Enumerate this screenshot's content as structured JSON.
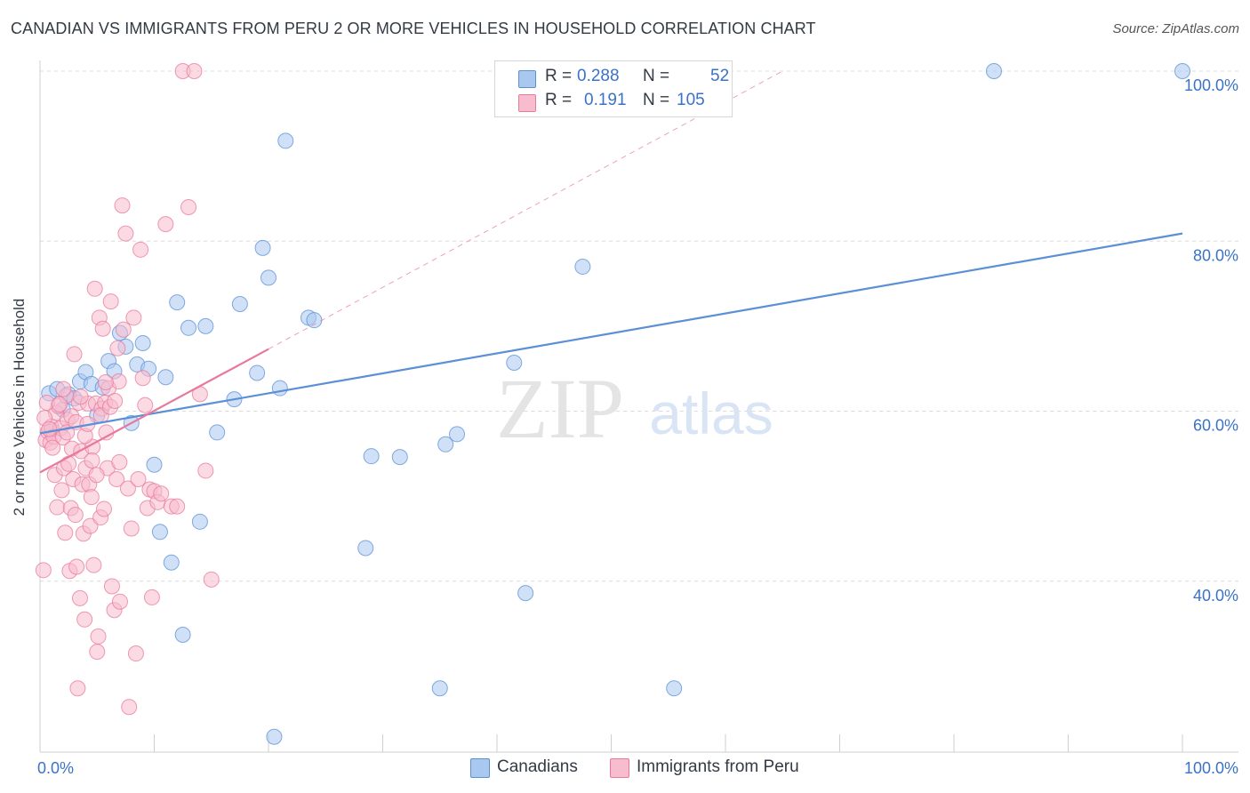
{
  "title": "CANADIAN VS IMMIGRANTS FROM PERU 2 OR MORE VEHICLES IN HOUSEHOLD CORRELATION CHART",
  "source": "Source: ZipAtlas.com",
  "watermark": {
    "zip": "ZIP",
    "atlas": "atlas"
  },
  "legend": {
    "rows": [
      {
        "r_label": "R =",
        "r_value": "0.288",
        "n_label": "N =",
        "n_value": "52",
        "color": "#a9c8f0",
        "stroke": "#5b8fd6"
      },
      {
        "r_label": "R =",
        "r_value": "0.191",
        "n_label": "N =",
        "n_value": "105",
        "color": "#f7bccd",
        "stroke": "#e8789c"
      }
    ]
  },
  "bottom_legend": [
    {
      "label": "Canadians",
      "color": "#a9c8f0",
      "stroke": "#5b8fd6"
    },
    {
      "label": "Immigrants from Peru",
      "color": "#f7bccd",
      "stroke": "#e8789c"
    }
  ],
  "chart_data": {
    "type": "scatter",
    "title": "CANADIAN VS IMMIGRANTS FROM PERU 2 OR MORE VEHICLES IN HOUSEHOLD CORRELATION CHART",
    "xlabel": "",
    "ylabel": "2 or more Vehicles in Household",
    "xlim": [
      0,
      100
    ],
    "ylim": [
      20,
      102
    ],
    "x_tick_labels": [
      "0.0%",
      "100.0%"
    ],
    "y_ticks": [
      40,
      60,
      80,
      100
    ],
    "y_tick_labels": [
      "40.0%",
      "60.0%",
      "80.0%",
      "100.0%"
    ],
    "grid": true,
    "legend_position": "top-center",
    "series": [
      {
        "name": "Canadians",
        "color": "#5b8fd6",
        "fill": "#a9c8f0",
        "trend": {
          "x": [
            0,
            100
          ],
          "y": [
            57.4,
            80.9
          ]
        },
        "points": [
          [
            0.8,
            62.1
          ],
          [
            1.5,
            62.6
          ],
          [
            2.5,
            62.0
          ],
          [
            3.5,
            63.5
          ],
          [
            4.0,
            64.6
          ],
          [
            4.5,
            63.2
          ],
          [
            5.0,
            59.5
          ],
          [
            5.5,
            62.8
          ],
          [
            6.0,
            65.9
          ],
          [
            6.5,
            64.7
          ],
          [
            7.0,
            69.2
          ],
          [
            7.5,
            67.6
          ],
          [
            8.0,
            58.6
          ],
          [
            8.5,
            65.5
          ],
          [
            9.0,
            68.0
          ],
          [
            9.5,
            65.0
          ],
          [
            10.0,
            53.7
          ],
          [
            10.5,
            45.8
          ],
          [
            11.0,
            64.0
          ],
          [
            11.5,
            42.2
          ],
          [
            12.0,
            72.8
          ],
          [
            12.5,
            33.7
          ],
          [
            13.0,
            69.8
          ],
          [
            14.0,
            47.0
          ],
          [
            14.5,
            70.0
          ],
          [
            15.5,
            57.5
          ],
          [
            17.0,
            61.4
          ],
          [
            17.5,
            72.6
          ],
          [
            19.0,
            64.5
          ],
          [
            19.5,
            79.2
          ],
          [
            20.0,
            75.7
          ],
          [
            20.5,
            21.7
          ],
          [
            21.0,
            62.7
          ],
          [
            21.5,
            91.8
          ],
          [
            23.5,
            71.0
          ],
          [
            24.0,
            70.7
          ],
          [
            28.5,
            43.9
          ],
          [
            29.0,
            54.7
          ],
          [
            31.5,
            54.6
          ],
          [
            35.0,
            27.4
          ],
          [
            35.5,
            56.1
          ],
          [
            36.5,
            57.3
          ],
          [
            41.5,
            65.7
          ],
          [
            42.5,
            38.6
          ],
          [
            47.5,
            77.0
          ],
          [
            55.5,
            27.4
          ],
          [
            56.0,
            100.0
          ],
          [
            83.5,
            100.0
          ],
          [
            100.0,
            100.0
          ],
          [
            1.0,
            57.8
          ],
          [
            2.0,
            60.2
          ],
          [
            3.0,
            61.5
          ]
        ]
      },
      {
        "name": "Immigrants from Peru",
        "color": "#e8789c",
        "fill": "#f7bccd",
        "trend": {
          "x": [
            0,
            20
          ],
          "y": [
            52.8,
            67.3
          ]
        },
        "trend_extension": {
          "x": [
            20,
            65
          ],
          "y": [
            67.3,
            100
          ]
        },
        "points": [
          [
            0.3,
            41.3
          ],
          [
            0.5,
            56.6
          ],
          [
            0.7,
            57.6
          ],
          [
            0.9,
            56.3
          ],
          [
            1.0,
            58.2
          ],
          [
            1.2,
            57.0
          ],
          [
            1.3,
            52.5
          ],
          [
            1.4,
            59.8
          ],
          [
            1.5,
            48.7
          ],
          [
            1.6,
            60.6
          ],
          [
            1.8,
            58.0
          ],
          [
            1.9,
            50.7
          ],
          [
            2.0,
            56.9
          ],
          [
            2.1,
            53.3
          ],
          [
            2.2,
            45.7
          ],
          [
            2.3,
            61.8
          ],
          [
            2.4,
            59.0
          ],
          [
            2.5,
            53.8
          ],
          [
            2.6,
            41.2
          ],
          [
            2.7,
            48.6
          ],
          [
            2.8,
            55.6
          ],
          [
            2.9,
            52.0
          ],
          [
            3.0,
            66.7
          ],
          [
            3.1,
            47.8
          ],
          [
            3.2,
            41.7
          ],
          [
            3.3,
            27.4
          ],
          [
            3.4,
            61.0
          ],
          [
            3.5,
            38.0
          ],
          [
            3.6,
            55.3
          ],
          [
            3.7,
            51.4
          ],
          [
            3.8,
            45.6
          ],
          [
            3.9,
            35.5
          ],
          [
            4.0,
            53.3
          ],
          [
            4.2,
            60.9
          ],
          [
            4.3,
            51.4
          ],
          [
            4.4,
            46.5
          ],
          [
            4.5,
            49.9
          ],
          [
            4.6,
            55.8
          ],
          [
            4.7,
            41.9
          ],
          [
            4.8,
            74.4
          ],
          [
            4.9,
            60.9
          ],
          [
            5.0,
            31.7
          ],
          [
            5.1,
            33.5
          ],
          [
            5.2,
            71.0
          ],
          [
            5.3,
            47.5
          ],
          [
            5.4,
            60.3
          ],
          [
            5.5,
            69.7
          ],
          [
            5.6,
            48.5
          ],
          [
            5.7,
            61.0
          ],
          [
            5.8,
            57.5
          ],
          [
            5.9,
            53.3
          ],
          [
            6.0,
            62.7
          ],
          [
            6.2,
            72.9
          ],
          [
            6.3,
            39.4
          ],
          [
            6.5,
            36.6
          ],
          [
            6.7,
            52.0
          ],
          [
            6.8,
            67.4
          ],
          [
            6.9,
            63.5
          ],
          [
            7.0,
            37.6
          ],
          [
            7.2,
            84.2
          ],
          [
            7.3,
            69.6
          ],
          [
            7.5,
            80.9
          ],
          [
            7.7,
            50.9
          ],
          [
            7.8,
            25.2
          ],
          [
            8.0,
            46.2
          ],
          [
            8.2,
            71.0
          ],
          [
            8.4,
            31.5
          ],
          [
            8.6,
            52.0
          ],
          [
            8.8,
            79.0
          ],
          [
            9.0,
            63.9
          ],
          [
            9.2,
            60.7
          ],
          [
            9.4,
            48.6
          ],
          [
            9.6,
            50.8
          ],
          [
            9.8,
            38.1
          ],
          [
            10.0,
            50.6
          ],
          [
            10.3,
            49.3
          ],
          [
            10.6,
            50.3
          ],
          [
            11.0,
            82.0
          ],
          [
            11.5,
            48.8
          ],
          [
            12.0,
            48.8
          ],
          [
            12.5,
            100.0
          ],
          [
            13.0,
            84.0
          ],
          [
            13.5,
            100.0
          ],
          [
            14.0,
            62.0
          ],
          [
            14.5,
            53.0
          ],
          [
            15.0,
            40.2
          ],
          [
            0.4,
            59.2
          ],
          [
            0.6,
            61.0
          ],
          [
            0.8,
            57.9
          ],
          [
            1.1,
            55.7
          ],
          [
            1.7,
            60.8
          ],
          [
            2.05,
            62.6
          ],
          [
            2.35,
            57.5
          ],
          [
            2.75,
            59.4
          ],
          [
            3.15,
            58.7
          ],
          [
            3.55,
            61.7
          ],
          [
            3.95,
            57.1
          ],
          [
            4.15,
            58.5
          ],
          [
            4.55,
            54.2
          ],
          [
            4.95,
            52.5
          ],
          [
            5.35,
            59.5
          ],
          [
            5.75,
            63.4
          ],
          [
            6.15,
            60.5
          ],
          [
            6.55,
            61.2
          ],
          [
            6.95,
            54.0
          ]
        ]
      }
    ]
  }
}
